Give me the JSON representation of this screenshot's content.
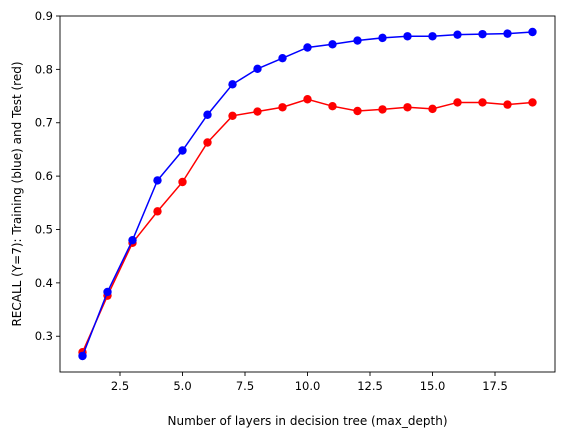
{
  "chart_data": {
    "type": "line",
    "xlabel": "Number of layers in decision tree (max_depth)",
    "ylabel": "RECALL (Y=7): Training (blue) and Test (red)",
    "xlim": [
      0.1,
      19.9
    ],
    "ylim": [
      0.233,
      0.9
    ],
    "xticks": [
      2.5,
      5.0,
      7.5,
      10.0,
      12.5,
      15.0,
      17.5
    ],
    "xtick_labels": [
      "2.5",
      "5.0",
      "7.5",
      "10.0",
      "12.5",
      "15.0",
      "17.5"
    ],
    "yticks": [
      0.3,
      0.4,
      0.5,
      0.6,
      0.7,
      0.8,
      0.9
    ],
    "ytick_labels": [
      "0.3",
      "0.4",
      "0.5",
      "0.6",
      "0.7",
      "0.8",
      "0.9"
    ],
    "grid": false,
    "x": [
      1,
      2,
      3,
      4,
      5,
      6,
      7,
      8,
      9,
      10,
      11,
      12,
      13,
      14,
      15,
      16,
      17,
      18,
      19
    ],
    "series": [
      {
        "color": "#ff0000",
        "values": [
          0.27,
          0.376,
          0.475,
          0.534,
          0.589,
          0.663,
          0.713,
          0.721,
          0.729,
          0.744,
          0.731,
          0.722,
          0.725,
          0.729,
          0.726,
          0.738,
          0.738,
          0.734,
          0.738
        ]
      },
      {
        "color": "#0000ff",
        "values": [
          0.263,
          0.383,
          0.48,
          0.592,
          0.648,
          0.715,
          0.772,
          0.801,
          0.821,
          0.841,
          0.847,
          0.854,
          0.859,
          0.862,
          0.862,
          0.865,
          0.866,
          0.867,
          0.87
        ]
      }
    ]
  }
}
